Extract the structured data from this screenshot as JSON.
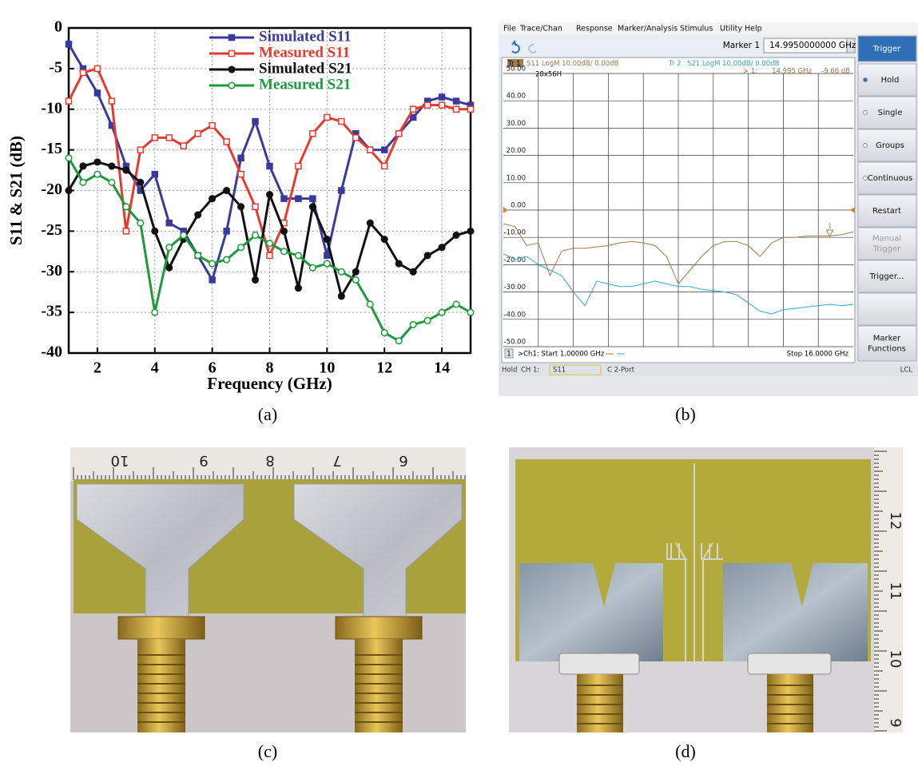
{
  "chart_data": {
    "type": "line",
    "xlabel": "Frequency (GHz)",
    "ylabel": "S11 & S21 (dB)",
    "x": [
      1,
      1.5,
      2,
      2.5,
      3,
      3.5,
      4,
      4.5,
      5,
      5.5,
      6,
      6.5,
      7,
      7.5,
      8,
      8.5,
      9,
      9.5,
      10,
      10.5,
      11,
      11.5,
      12,
      12.5,
      13,
      13.5,
      14,
      14.5,
      15
    ],
    "xlim": [
      1,
      15
    ],
    "xticks": [
      2,
      4,
      6,
      8,
      10,
      12,
      14
    ],
    "ylim": [
      -40,
      0
    ],
    "yticks": [
      0,
      -5,
      -10,
      -15,
      -20,
      -25,
      -30,
      -35,
      -40
    ],
    "grid": true,
    "series": [
      {
        "name": "Simulated S11",
        "color": "#3a3a9c",
        "marker": "square",
        "filled": true,
        "values": [
          -2,
          -5,
          -8,
          -12,
          -17,
          -20,
          -18,
          -24,
          -25,
          -28,
          -31,
          -25,
          -16,
          -11.5,
          -17,
          -21,
          -21,
          -21,
          -28,
          -20,
          -13,
          -15,
          -15,
          -13,
          -11,
          -9,
          -8.5,
          -9,
          -9.5
        ]
      },
      {
        "name": "Measured S11",
        "color": "#e8392f",
        "marker": "square",
        "filled": false,
        "values": [
          -9,
          -5.5,
          -5,
          -9,
          -25,
          -15,
          -13.5,
          -13.5,
          -14.5,
          -13,
          -12,
          -14,
          -18,
          -22,
          -28,
          -24,
          -17,
          -13,
          -11,
          -11.5,
          -13.5,
          -15,
          -17,
          -13,
          -10,
          -9.5,
          -9.5,
          -10,
          -10
        ]
      },
      {
        "name": "Simulated S21",
        "color": "#111111",
        "marker": "circle",
        "filled": true,
        "values": [
          -20,
          -17,
          -16.5,
          -17,
          -17.5,
          -19,
          -25,
          -29.5,
          -26,
          -23,
          -21,
          -20,
          -22,
          -31,
          -20.5,
          -25,
          -32,
          -22,
          -26,
          -33,
          -30,
          -24,
          -26,
          -29,
          -30,
          -28,
          -27,
          -25.5,
          -25
        ]
      },
      {
        "name": "Measured S21",
        "color": "#1c9a3c",
        "marker": "circle",
        "filled": false,
        "values": [
          -16,
          -19,
          -18,
          -19,
          -22,
          -24,
          -35,
          -27,
          -25.5,
          -28,
          -29,
          -28.5,
          -27,
          -25.5,
          -26.5,
          -27.5,
          -28,
          -29.5,
          -29,
          -30,
          -31,
          -34,
          -37.5,
          -38.5,
          -36.5,
          -36,
          -35,
          -34,
          -35
        ]
      }
    ]
  },
  "vna": {
    "menu": [
      "File",
      "Trace/Chan",
      "Response",
      "Marker/Analysis",
      "Stimulus",
      "Utility",
      "Help"
    ],
    "marker_name": "Marker 1",
    "marker_entry": "14.9950000000 GHz",
    "buttons": [
      {
        "lines": [
          "Trigger"
        ]
      },
      {
        "lines": [
          "Hold"
        ]
      },
      {
        "lines": [
          "Single"
        ]
      },
      {
        "lines": [
          "Groups"
        ]
      },
      {
        "lines": [
          "Continuous"
        ]
      },
      {
        "lines": [
          "Restart"
        ]
      },
      {
        "lines": [
          "Manual",
          "Trigger"
        ]
      },
      {
        "lines": [
          "Trigger..."
        ]
      },
      {
        "lines": []
      },
      {
        "lines": [
          "Marker",
          "Functions"
        ]
      }
    ],
    "window_tag": "28x56H",
    "readout": {
      "marker": "> 1:",
      "freq": "14.995 GHz",
      "level": "-9.66 dB"
    },
    "x": [
      1,
      1.5,
      2,
      2.5,
      3,
      3.5,
      4,
      4.5,
      5,
      5.5,
      6,
      6.5,
      7,
      7.5,
      8,
      8.5,
      9,
      9.5,
      10,
      10.5,
      11,
      11.5,
      12,
      12.5,
      13,
      13.5,
      14,
      14.5,
      15,
      15.5,
      16
    ],
    "xlim": [
      1,
      16
    ],
    "ylim": [
      -50,
      50
    ],
    "yticks": [
      {
        "value": 50,
        "label": "50.00"
      },
      {
        "value": 40,
        "label": "40.00"
      },
      {
        "value": 30,
        "label": "30.00"
      },
      {
        "value": 20,
        "label": "20.00"
      },
      {
        "value": 10,
        "label": "10.00"
      },
      {
        "value": 0,
        "label": "0.00"
      },
      {
        "value": -10,
        "label": "-10.00"
      },
      {
        "value": -20,
        "label": "-20.00"
      },
      {
        "value": -30,
        "label": "-30.00"
      },
      {
        "value": -40,
        "label": "-40.00"
      },
      {
        "value": -50,
        "label": "-50.00"
      }
    ],
    "traces": [
      {
        "tag": "Tr 1",
        "label": "S11 LogM 10.00dB/ 0.00dB",
        "color": "#a07a4a",
        "values": [
          -5,
          -6,
          -13,
          -12,
          -24,
          -15,
          -14,
          -14,
          -13.5,
          -13,
          -12,
          -11.5,
          -12,
          -13,
          -17,
          -27,
          -22,
          -17,
          -13,
          -11.5,
          -11.5,
          -13,
          -17,
          -12,
          -10,
          -10,
          -9.5,
          -9.5,
          -9.5,
          -9,
          -8
        ]
      },
      {
        "tag": "Tr 2",
        "label": "S21 LogM 10.00dB/ 0.00dB",
        "color": "#3aa6c8",
        "values": [
          -16,
          -18,
          -17,
          -20,
          -22,
          -24,
          -30,
          -35,
          -26,
          -27,
          -28,
          -28,
          -27,
          -26,
          -27,
          -28,
          -28,
          -29,
          -29.5,
          -30,
          -31,
          -34,
          -37,
          -38,
          -36.5,
          -36,
          -35.5,
          -35,
          -34.5,
          -35,
          -34.5
        ]
      }
    ],
    "marker": {
      "label": "1",
      "x": 14.995,
      "value": -9.66
    },
    "channel_no": "1",
    "start": ">Ch1:  Start  1.00000 GHz",
    "stop": "Stop  16.0000 GHz",
    "status": [
      "Hold",
      "CH 1:",
      "S11",
      "C 2-Port",
      "LCL"
    ]
  },
  "photo_c": {
    "ruler_labels": [
      "10",
      "9",
      "8",
      "7",
      "6"
    ]
  },
  "photo_d": {
    "ruler_labels": [
      "12",
      "11",
      "10",
      "9"
    ]
  },
  "captions": [
    "(a)",
    "(b)",
    "(c)",
    "(d)"
  ]
}
